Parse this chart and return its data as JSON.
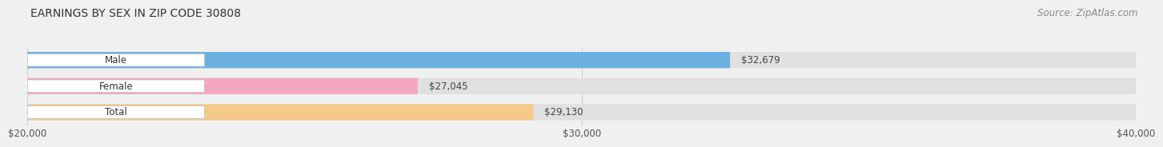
{
  "title": "EARNINGS BY SEX IN ZIP CODE 30808",
  "source": "Source: ZipAtlas.com",
  "categories": [
    "Male",
    "Female",
    "Total"
  ],
  "values": [
    32679,
    27045,
    29130
  ],
  "labels": [
    "$32,679",
    "$27,045",
    "$29,130"
  ],
  "bar_colors": [
    "#6ab0e0",
    "#f4a8c0",
    "#f5c98a"
  ],
  "background_color": "#f0f0f0",
  "bar_bg_color": "#e0e0e0",
  "xmin": 20000,
  "xmax": 40000,
  "xtick_labels": [
    "$20,000",
    "$30,000",
    "$40,000"
  ],
  "title_fontsize": 10,
  "label_fontsize": 8.5,
  "tick_fontsize": 8.5,
  "source_fontsize": 8.5
}
